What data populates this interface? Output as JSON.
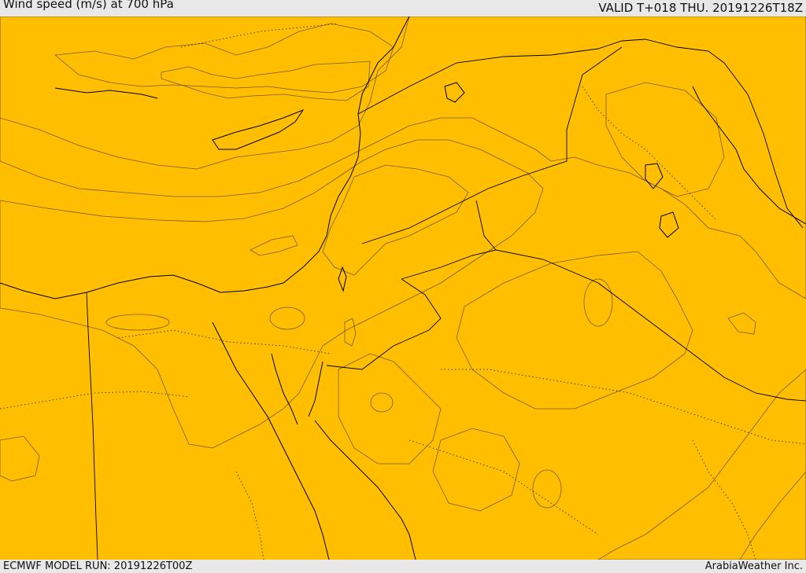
{
  "header": {
    "title": "Wind speed (m/s) at 700 hPa",
    "valid": "VALID T+018 THU. 20191226T18Z"
  },
  "footer": {
    "model_run": "ECMWF MODEL RUN: 20191226T00Z",
    "credit": "ArabiaWeather Inc."
  },
  "palette": {
    "white": "#ffffff",
    "light_tan": "#ffdda7",
    "yellow": "#ffff00",
    "gold": "#ffdd00",
    "amber": "#ffbf00",
    "orange": "#ff9c00",
    "deep_orange": "#ff7f1e"
  }
}
